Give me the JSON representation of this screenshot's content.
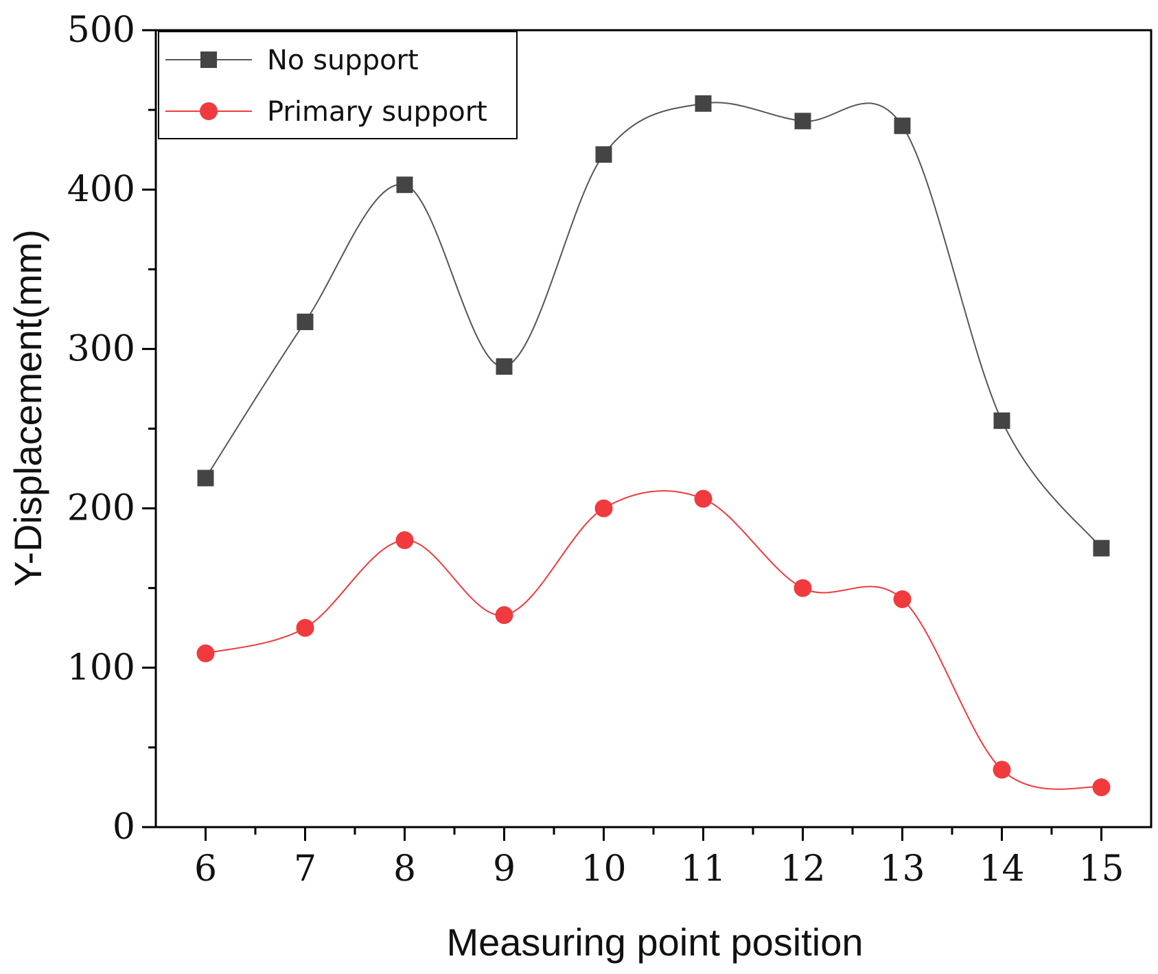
{
  "chart_data": {
    "type": "line",
    "title": "",
    "xlabel": "Measuring point position",
    "ylabel": "Y-Displacement(mm)",
    "x": [
      6,
      7,
      8,
      9,
      10,
      11,
      12,
      13,
      14,
      15
    ],
    "xlim": [
      5.5,
      15.5
    ],
    "ylim": [
      0,
      500
    ],
    "xticks": [
      6,
      7,
      8,
      9,
      10,
      11,
      12,
      13,
      14,
      15
    ],
    "yticks": [
      0,
      100,
      200,
      300,
      400,
      500
    ],
    "grid": false,
    "legend_position": "top-left",
    "series": [
      {
        "name": "No support",
        "marker": "square",
        "color": "#444444",
        "line_color": "#555555",
        "values": [
          219,
          317,
          403,
          289,
          422,
          454,
          443,
          440,
          255,
          175
        ]
      },
      {
        "name": "Primary support",
        "marker": "circle",
        "color": "#f03a3d",
        "line_color": "#f03a3d",
        "values": [
          109,
          125,
          180,
          133,
          200,
          206,
          150,
          143,
          36,
          25
        ]
      }
    ]
  }
}
